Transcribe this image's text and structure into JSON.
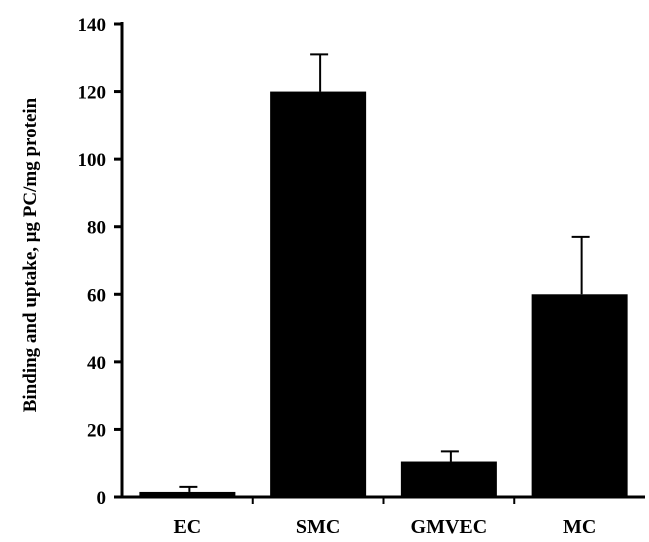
{
  "chart_data": {
    "type": "bar",
    "title": "",
    "xlabel": "",
    "ylabel": "Binding and uptake, μg PC/mg protein",
    "ylim": [
      0,
      140
    ],
    "yticks": [
      "0",
      "20",
      "40",
      "60",
      "80",
      "100",
      "120",
      "140"
    ],
    "categories": [
      "EC",
      "SMC",
      "GMVEC",
      "MC"
    ],
    "values": [
      1.5,
      120,
      10.5,
      60
    ],
    "error_upper": [
      1.5,
      11,
      3,
      17
    ],
    "bar_color": "#000000",
    "grid": false,
    "legend": "none"
  }
}
